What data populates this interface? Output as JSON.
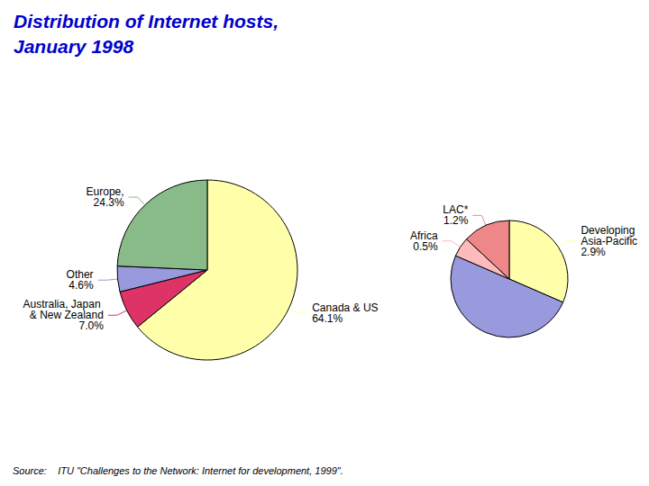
{
  "chart_data": [
    {
      "type": "pie",
      "title": "Distribution of Internet hosts,",
      "subtitle": "January 1998",
      "categories": [
        "Canada & US",
        "Australia, Japan & New Zealand",
        "Other",
        "Europe,"
      ],
      "values": [
        64.1,
        7.0,
        4.6,
        24.3
      ],
      "value_labels": [
        "64.1%",
        "7.0%",
        "4.6%",
        "24.3%"
      ],
      "colors": [
        "#FFFFAA",
        "#DD3366",
        "#9999DD",
        "#88BB88"
      ],
      "data_labels": true,
      "annotations": [
        "Source:    ITU \"Challenges to the Network: Internet for development, 1999\"."
      ]
    },
    {
      "type": "pie",
      "categories": [
        "Developing Asia-Pacific",
        null,
        "Africa",
        "LAC*"
      ],
      "values": [
        2.9,
        4.6,
        0.5,
        1.2
      ],
      "value_labels": [
        "2.9%",
        null,
        "0.5%",
        "1.2%"
      ],
      "colors": [
        "#FFFFAA",
        "#9999DD",
        "#FFBBBB",
        "#EE8888"
      ],
      "data_labels": true
    }
  ]
}
